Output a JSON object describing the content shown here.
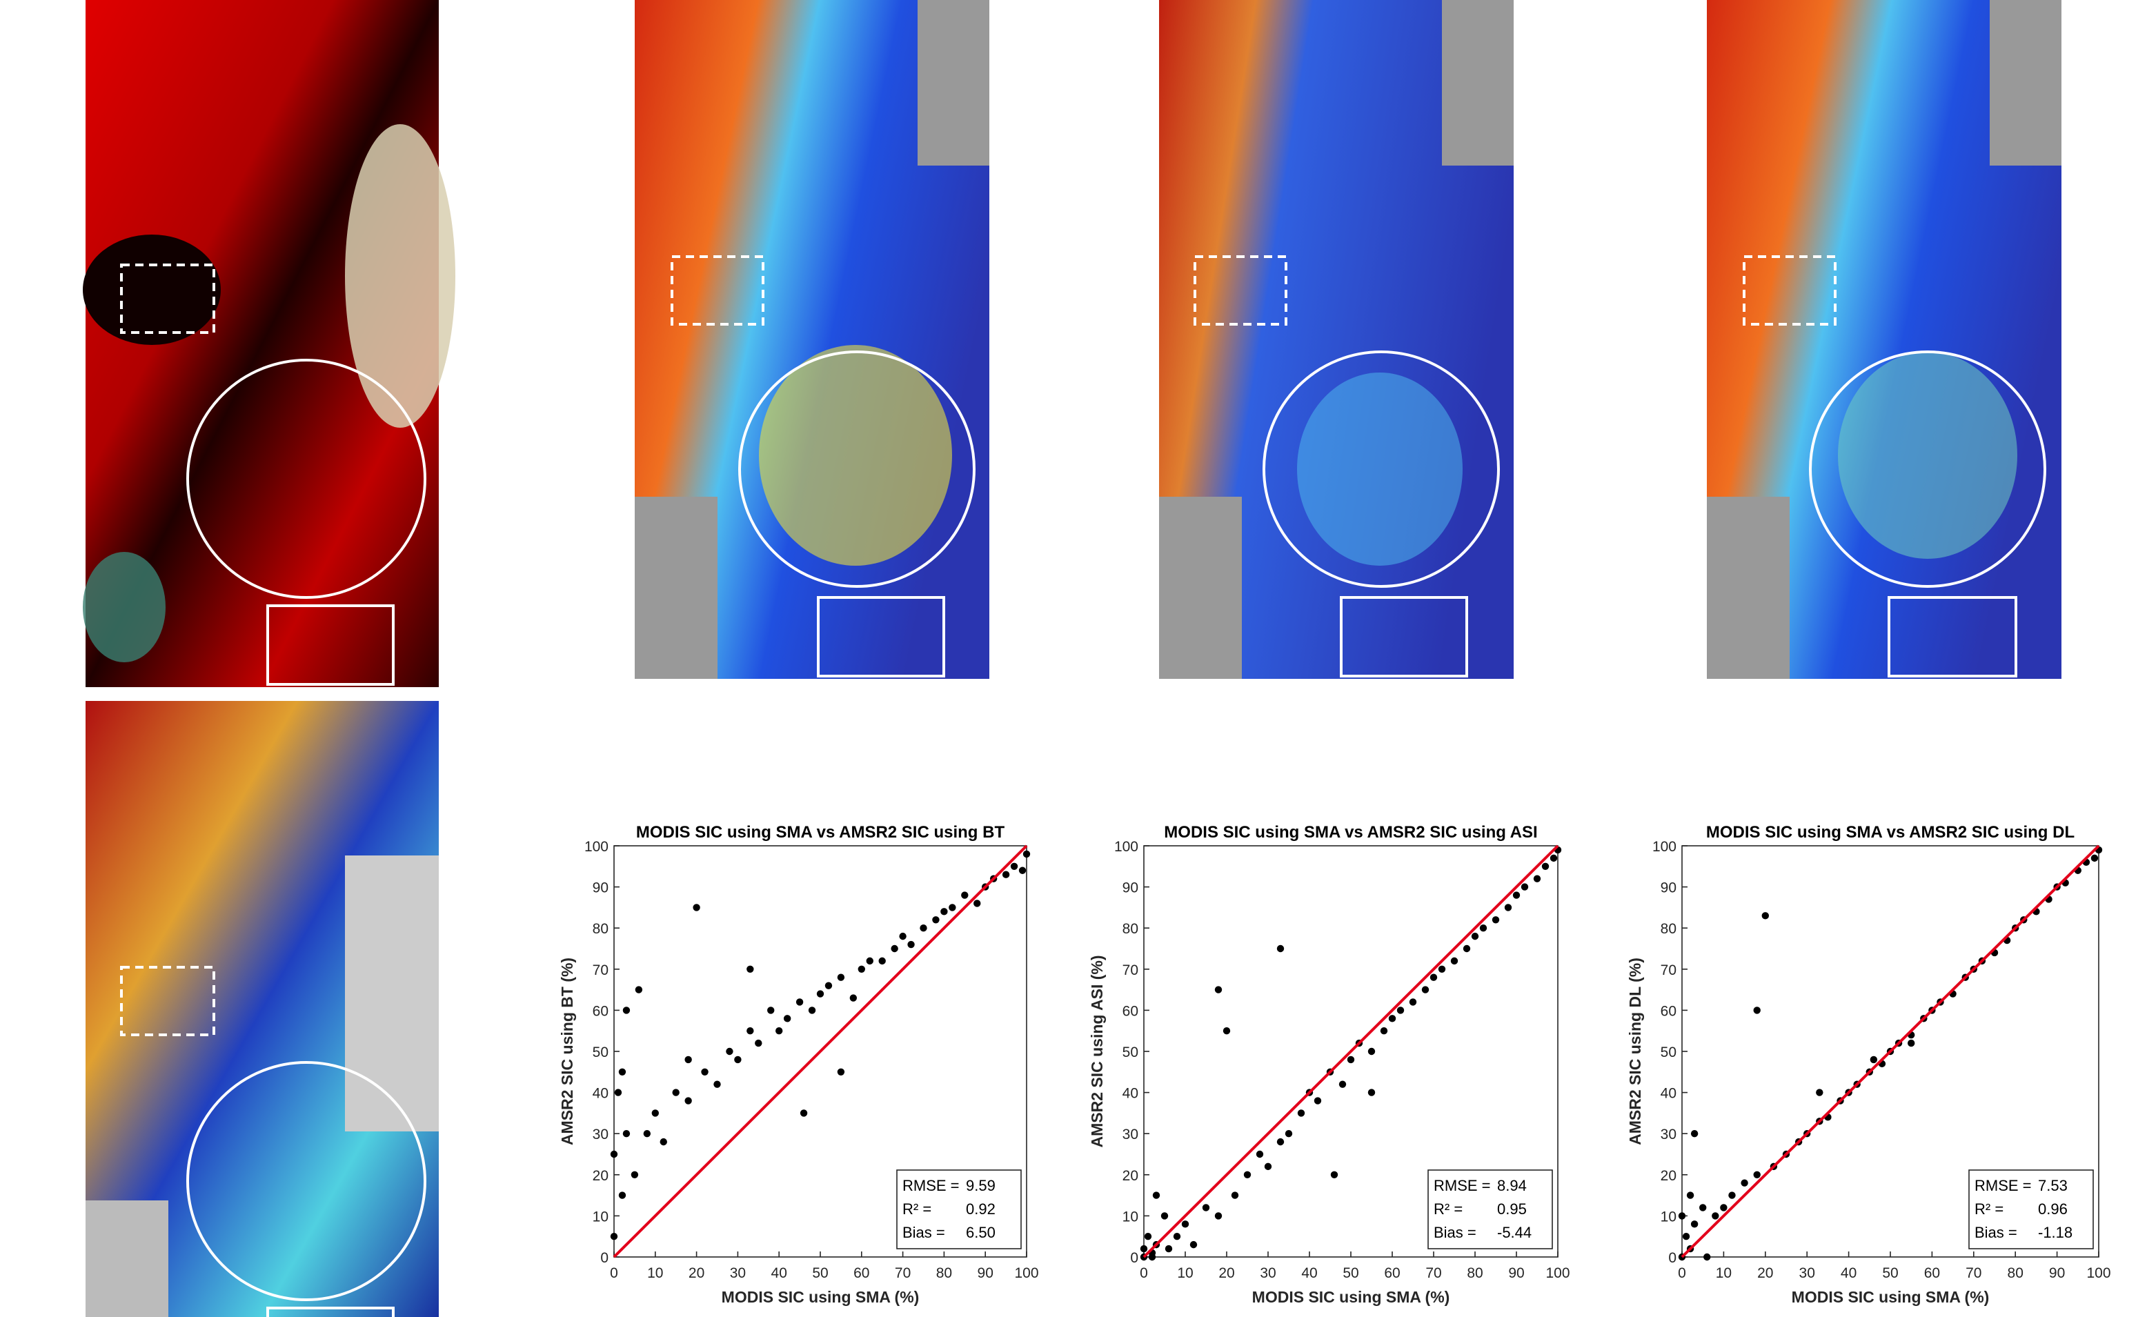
{
  "chart_data": [
    {
      "type": "scatter",
      "title": "MODIS SIC using SMA vs AMSR2 SIC using BT",
      "x_label": "MODIS SIC using SMA (%)",
      "y_label": "AMSR2 SIC using BT (%)",
      "x": [
        0,
        0,
        1,
        2,
        3,
        5,
        2,
        8,
        10,
        12,
        15,
        18,
        20,
        22,
        25,
        28,
        30,
        33,
        35,
        38,
        40,
        42,
        45,
        48,
        50,
        52,
        55,
        58,
        60,
        62,
        65,
        68,
        70,
        72,
        75,
        78,
        80,
        82,
        85,
        88,
        90,
        92,
        95,
        97,
        99,
        100,
        3,
        6,
        18,
        33,
        46,
        55
      ],
      "values": [
        5,
        25,
        40,
        15,
        30,
        20,
        45,
        30,
        35,
        28,
        40,
        38,
        85,
        45,
        42,
        50,
        48,
        55,
        52,
        60,
        55,
        58,
        62,
        60,
        64,
        66,
        68,
        63,
        70,
        72,
        72,
        75,
        78,
        76,
        80,
        82,
        84,
        85,
        88,
        86,
        90,
        92,
        93,
        95,
        94,
        98,
        60,
        65,
        48,
        70,
        35,
        45
      ],
      "color": "#000000",
      "fit_line": {
        "x": [
          0,
          100
        ],
        "values": [
          0,
          100
        ],
        "color": "#e3001b"
      },
      "xlim": [
        0,
        100
      ],
      "ylim": [
        0,
        100
      ],
      "xticks": [
        0,
        10,
        20,
        30,
        40,
        50,
        60,
        70,
        80,
        90,
        100
      ],
      "yticks": [
        0,
        10,
        20,
        30,
        40,
        50,
        60,
        70,
        80,
        90,
        100
      ],
      "stats": [
        {
          "label": "RMSE =",
          "value": 9.59
        },
        {
          "label": "R² =",
          "value": 0.92
        },
        {
          "label": "Bias =",
          "value": 6.5,
          "value_label": "6.50"
        }
      ]
    },
    {
      "type": "scatter",
      "title": "MODIS SIC using SMA vs AMSR2 SIC using ASI",
      "x_label": "MODIS SIC using SMA (%)",
      "y_label": "AMSR2 SIC using ASI (%)",
      "x": [
        0,
        0,
        1,
        2,
        3,
        5,
        2,
        8,
        10,
        12,
        15,
        18,
        20,
        22,
        25,
        28,
        30,
        33,
        35,
        38,
        40,
        42,
        45,
        48,
        50,
        52,
        55,
        58,
        60,
        62,
        65,
        68,
        70,
        72,
        75,
        78,
        80,
        82,
        85,
        88,
        90,
        92,
        95,
        97,
        99,
        100,
        3,
        6,
        18,
        33,
        46,
        55
      ],
      "values": [
        0,
        2,
        5,
        0,
        3,
        10,
        1,
        5,
        8,
        3,
        12,
        10,
        55,
        15,
        20,
        25,
        22,
        28,
        30,
        35,
        40,
        38,
        45,
        42,
        48,
        52,
        50,
        55,
        58,
        60,
        62,
        65,
        68,
        70,
        72,
        75,
        78,
        80,
        82,
        85,
        88,
        90,
        92,
        95,
        97,
        99,
        15,
        2,
        65,
        75,
        20,
        40
      ],
      "color": "#000000",
      "fit_line": {
        "x": [
          0,
          100
        ],
        "values": [
          0,
          100
        ],
        "color": "#e3001b"
      },
      "xlim": [
        0,
        100
      ],
      "ylim": [
        0,
        100
      ],
      "xticks": [
        0,
        10,
        20,
        30,
        40,
        50,
        60,
        70,
        80,
        90,
        100
      ],
      "yticks": [
        0,
        10,
        20,
        30,
        40,
        50,
        60,
        70,
        80,
        90,
        100
      ],
      "stats": [
        {
          "label": "RMSE =",
          "value": 8.94
        },
        {
          "label": "R² =",
          "value": 0.95
        },
        {
          "label": "Bias =",
          "value": -5.44
        }
      ]
    },
    {
      "type": "scatter",
      "title": "MODIS SIC using SMA vs AMSR2 SIC using DL",
      "x_label": "MODIS SIC using SMA (%)",
      "y_label": "AMSR2 SIC using DL (%)",
      "x": [
        0,
        0,
        1,
        2,
        3,
        5,
        2,
        8,
        10,
        12,
        15,
        18,
        20,
        22,
        25,
        28,
        30,
        33,
        35,
        38,
        40,
        42,
        45,
        48,
        50,
        52,
        55,
        58,
        60,
        62,
        65,
        68,
        70,
        72,
        75,
        78,
        80,
        82,
        85,
        88,
        90,
        92,
        95,
        97,
        99,
        100,
        3,
        6,
        18,
        33,
        46,
        55
      ],
      "values": [
        0,
        10,
        5,
        2,
        8,
        12,
        15,
        10,
        12,
        15,
        18,
        20,
        83,
        22,
        25,
        28,
        30,
        33,
        34,
        38,
        40,
        42,
        45,
        47,
        50,
        52,
        54,
        58,
        60,
        62,
        64,
        68,
        70,
        72,
        74,
        77,
        80,
        82,
        84,
        87,
        90,
        91,
        94,
        96,
        97,
        99,
        30,
        0,
        60,
        40,
        48,
        52
      ],
      "color": "#000000",
      "fit_line": {
        "x": [
          0,
          100
        ],
        "values": [
          0,
          100
        ],
        "color": "#e3001b"
      },
      "xlim": [
        0,
        100
      ],
      "ylim": [
        0,
        100
      ],
      "xticks": [
        0,
        10,
        20,
        30,
        40,
        50,
        60,
        70,
        80,
        90,
        100
      ],
      "yticks": [
        0,
        10,
        20,
        30,
        40,
        50,
        60,
        70,
        80,
        90,
        100
      ],
      "stats": [
        {
          "label": "RMSE =",
          "value": 7.53
        },
        {
          "label": "R² =",
          "value": 0.96
        },
        {
          "label": "Bias =",
          "value": -1.18
        }
      ]
    }
  ]
}
